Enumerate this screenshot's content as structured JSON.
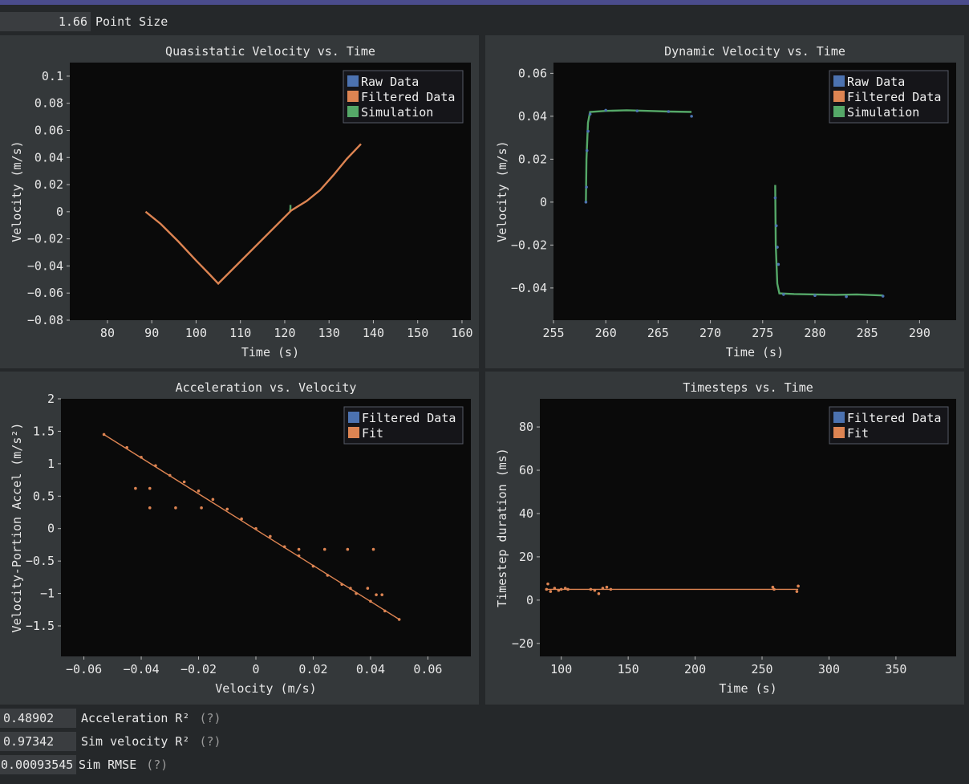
{
  "toolbar": {
    "point_size_value": "1.66",
    "point_size_label": "Point Size"
  },
  "stats": [
    {
      "value": "0.48902",
      "label": "Acceleration R²",
      "help": "(?)"
    },
    {
      "value": "0.97342",
      "label": "Sim velocity R²",
      "help": "(?)"
    },
    {
      "value": "0.00093545",
      "label": "Sim RMSE",
      "help": "(?)"
    }
  ],
  "colors": {
    "raw": "#4c72b0",
    "filtered": "#dd8452",
    "sim": "#55a868",
    "plot_bg": "#0a0a0a",
    "panel_bg": "#34383a"
  },
  "chart_data": [
    {
      "type": "scatter",
      "title": "Quasistatic Velocity vs. Time",
      "xlabel": "Time (s)",
      "ylabel": "Velocity (m/s)",
      "xlim": [
        71.5,
        162
      ],
      "ylim": [
        -0.08,
        0.11
      ],
      "xticks": [
        80,
        90,
        100,
        110,
        120,
        130,
        140,
        150,
        160
      ],
      "yticks": [
        -0.08,
        -0.06,
        -0.04,
        -0.02,
        0,
        0.02,
        0.04,
        0.06,
        0.08,
        0.1
      ],
      "ytick_labels": [
        "−0.08",
        "−0.06",
        "−0.04",
        "−0.02",
        "0",
        "0.02",
        "0.04",
        "0.06",
        "0.08",
        "0.1"
      ],
      "legend": [
        "Raw Data",
        "Filtered Data",
        "Simulation"
      ],
      "legend_position": "top-right",
      "series": [
        {
          "name": "Simulation",
          "x": [
            121.2,
            121.3,
            121.3
          ],
          "y": [
            0.0,
            0.003,
            0.005
          ],
          "style": "line"
        },
        {
          "name": "Filtered Data",
          "x": [
            88.6,
            92,
            96,
            100,
            103,
            105,
            121.5,
            125,
            128,
            131,
            134,
            137.2
          ],
          "y": [
            0.0,
            -0.009,
            -0.022,
            -0.036,
            -0.046,
            -0.053,
            0.001,
            0.008,
            0.016,
            0.027,
            0.039,
            0.05
          ],
          "style": "line"
        }
      ]
    },
    {
      "type": "scatter",
      "title": "Dynamic Velocity vs. Time",
      "xlabel": "Time (s)",
      "ylabel": "Velocity (m/s)",
      "xlim": [
        255,
        293.5
      ],
      "ylim": [
        -0.055,
        0.065
      ],
      "xticks": [
        255,
        260,
        265,
        270,
        275,
        280,
        285,
        290
      ],
      "yticks": [
        -0.04,
        -0.02,
        0,
        0.02,
        0.04,
        0.06
      ],
      "ytick_labels": [
        "−0.04",
        "−0.02",
        "0",
        "0.02",
        "0.04",
        "0.06"
      ],
      "legend": [
        "Raw Data",
        "Filtered Data",
        "Simulation"
      ],
      "legend_position": "top-right",
      "series": [
        {
          "name": "Simulation",
          "x": [
            258.1,
            258.15,
            258.3,
            258.5,
            260,
            262,
            264,
            266,
            268.2
          ],
          "y": [
            0.0,
            0.02,
            0.037,
            0.042,
            0.0425,
            0.0428,
            0.0425,
            0.0422,
            0.042
          ],
          "style": "line"
        },
        {
          "name": "Simulation",
          "x": [
            276.2,
            276.25,
            276.4,
            276.6,
            278,
            280,
            282,
            284,
            286.5
          ],
          "y": [
            0.008,
            -0.02,
            -0.038,
            -0.0425,
            -0.0428,
            -0.043,
            -0.0432,
            -0.043,
            -0.0435
          ],
          "style": "line"
        },
        {
          "name": "Raw Data",
          "x": [
            258.1,
            258.15,
            258.2,
            258.3,
            258.5,
            260,
            263,
            266,
            268.2,
            276.2,
            276.3,
            276.4,
            276.5,
            277,
            280,
            283,
            286.5
          ],
          "y": [
            0.0,
            0.007,
            0.024,
            0.033,
            0.041,
            0.0428,
            0.0425,
            0.0422,
            0.04,
            0.002,
            -0.011,
            -0.021,
            -0.029,
            -0.043,
            -0.0435,
            -0.044,
            -0.0438
          ],
          "style": "points"
        }
      ]
    },
    {
      "type": "scatter",
      "title": "Acceleration vs. Velocity",
      "xlabel": "Velocity (m/s)",
      "ylabel": "Velocity-Portion Accel (m/s²)",
      "xlim": [
        -0.068,
        0.075
      ],
      "ylim": [
        -1.97,
        2.0
      ],
      "xticks": [
        -0.06,
        -0.04,
        -0.02,
        0,
        0.02,
        0.04,
        0.06
      ],
      "xtick_labels": [
        "−0.06",
        "−0.04",
        "−0.02",
        "0",
        "0.02",
        "0.04",
        "0.06"
      ],
      "yticks": [
        -1.5,
        -1,
        -0.5,
        0,
        0.5,
        1,
        1.5,
        2
      ],
      "ytick_labels": [
        "−1.5",
        "−1",
        "−0.5",
        "0",
        "0.5",
        "1",
        "1.5",
        "2"
      ],
      "legend": [
        "Filtered Data",
        "Fit"
      ],
      "legend_position": "top-right",
      "series": [
        {
          "name": "Filtered Data",
          "x": [
            -0.053,
            -0.045,
            -0.04,
            -0.035,
            -0.03,
            -0.025,
            -0.02,
            -0.015,
            -0.01,
            -0.005,
            0,
            0.005,
            0.01,
            0.015,
            0.02,
            0.025,
            0.03,
            0.035,
            0.04,
            0.045,
            0.05,
            -0.042,
            -0.037,
            -0.037,
            -0.028,
            -0.019,
            0.015,
            0.024,
            0.032,
            0.041,
            0.033,
            0.039,
            0.042,
            0.044
          ],
          "y": [
            1.45,
            1.25,
            1.1,
            0.97,
            0.82,
            0.72,
            0.58,
            0.45,
            0.3,
            0.15,
            0.0,
            -0.12,
            -0.28,
            -0.42,
            -0.58,
            -0.72,
            -0.86,
            -1.0,
            -1.12,
            -1.27,
            -1.4,
            0.62,
            0.62,
            0.32,
            0.32,
            0.32,
            -0.32,
            -0.32,
            -0.32,
            -0.32,
            -0.92,
            -0.92,
            -1.02,
            -1.02
          ],
          "style": "points"
        },
        {
          "name": "Fit",
          "x": [
            -0.053,
            0.05
          ],
          "y": [
            1.45,
            -1.4
          ],
          "style": "line"
        }
      ]
    },
    {
      "type": "scatter",
      "title": "Timesteps vs. Time",
      "xlabel": "Time (s)",
      "ylabel": "Timestep duration (ms)",
      "xlim": [
        84,
        395
      ],
      "ylim": [
        -26,
        93
      ],
      "xticks": [
        100,
        150,
        200,
        250,
        300,
        350
      ],
      "yticks": [
        -20,
        0,
        20,
        40,
        60,
        80
      ],
      "ytick_labels": [
        "−20",
        "0",
        "20",
        "40",
        "60",
        "80"
      ],
      "legend": [
        "Filtered Data",
        "Fit"
      ],
      "legend_position": "top-right",
      "series": [
        {
          "name": "Filtered Data",
          "x": [
            89,
            90,
            92,
            95,
            98,
            100,
            103,
            105,
            122,
            125,
            128,
            131,
            134,
            137,
            258,
            259,
            276,
            277
          ],
          "y": [
            5,
            7.5,
            4,
            5.5,
            4.5,
            5,
            5.5,
            5,
            5,
            4.5,
            3,
            5.5,
            6,
            5,
            6,
            5,
            4,
            6.5
          ],
          "style": "points"
        },
        {
          "name": "Fit",
          "x": [
            88,
            277
          ],
          "y": [
            5,
            5
          ],
          "style": "line"
        }
      ]
    }
  ]
}
